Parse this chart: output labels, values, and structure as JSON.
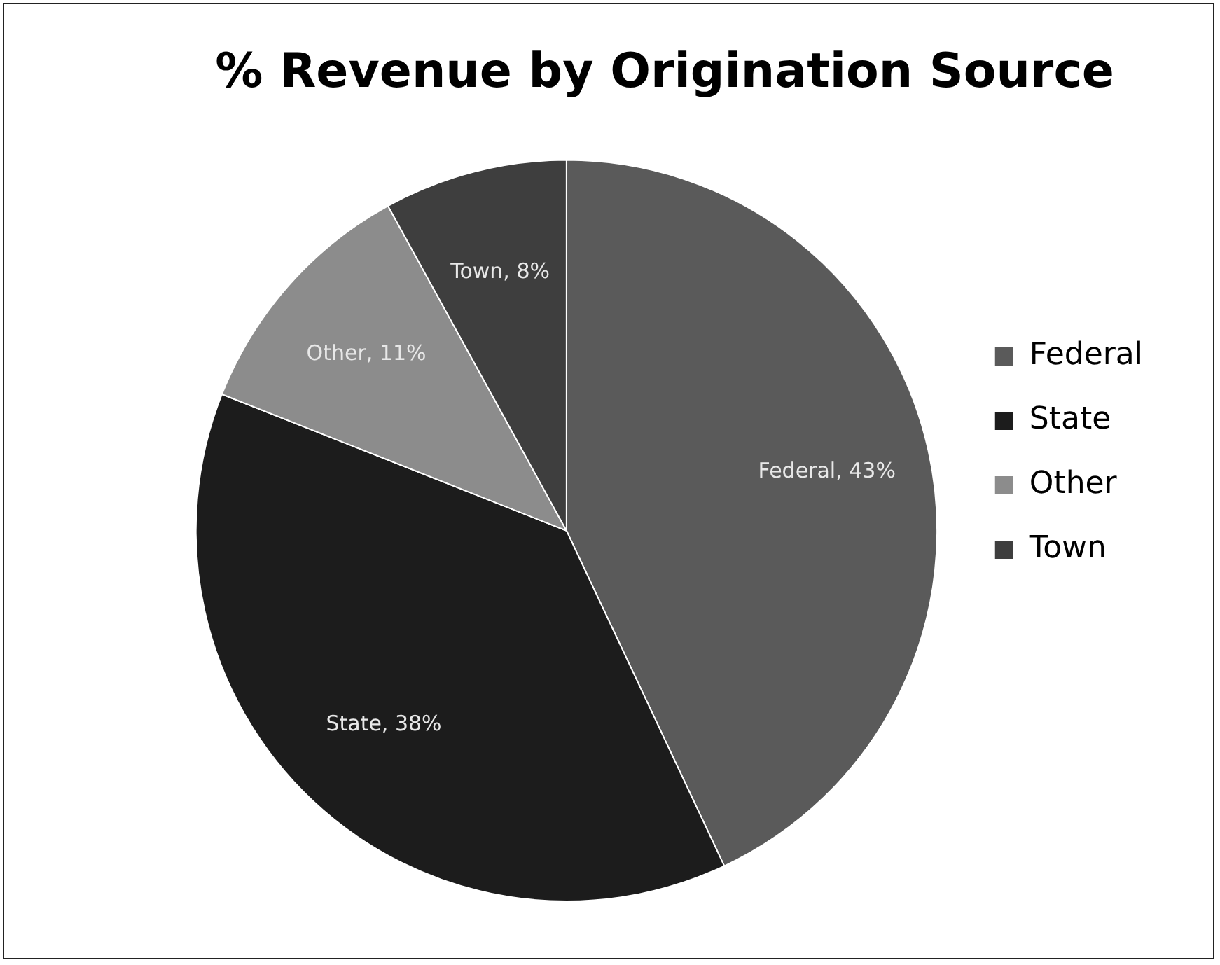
{
  "chart_data": {
    "type": "pie",
    "title": "% Revenue by Origination Source",
    "categories": [
      "Federal",
      "State",
      "Other",
      "Town"
    ],
    "values": [
      43,
      38,
      11,
      8
    ],
    "colors": [
      "#5a5a5a",
      "#1c1c1c",
      "#8c8c8c",
      "#3e3e3e"
    ],
    "value_labels": [
      "Federal, 43%",
      "State, 38%",
      "Other, 11%",
      "Town, 8%"
    ],
    "legend": "right"
  }
}
